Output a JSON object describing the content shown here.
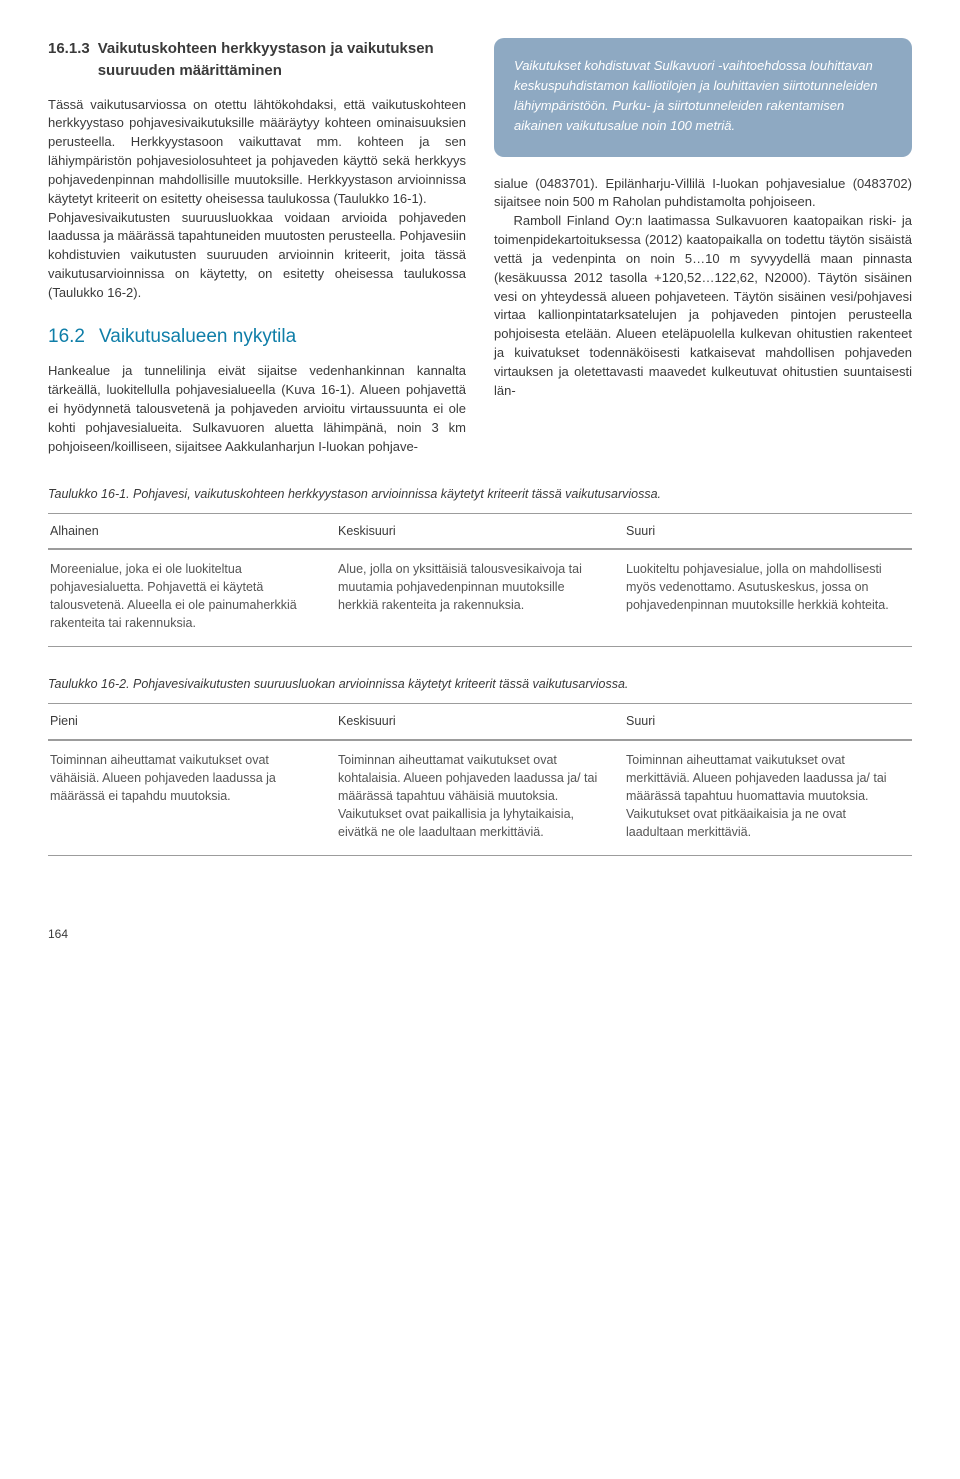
{
  "colors": {
    "body_text": "#3a3a3a",
    "blue_heading": "#0f7ea8",
    "callout_bg": "#8ea9c2",
    "callout_text": "#ffffff",
    "table_border": "#9c9c9c",
    "table_cell_text": "#555555",
    "background": "#ffffff"
  },
  "typography": {
    "body_fontsize_pt": 10,
    "heading_fontsize_pt": 14,
    "callout_fontsize_pt": 10,
    "caption_fontsize_pt": 9.5,
    "font_family": "Arial"
  },
  "section1613": {
    "num": "16.1.3",
    "title": "Vaikutuskohteen herkkyystason ja vaikutuksen suuruuden määrittäminen",
    "para1": "Tässä vaikutusarviossa on otettu lähtökohdaksi, että vaikutuskohteen herkkyystaso pohjavesivaikutuksille määräytyy kohteen ominaisuuksien perusteella. Herkkyystasoon vaikuttavat mm. kohteen ja sen lähiympäristön pohjavesiolosuhteet ja pohjaveden käyttö sekä herkkyys pohjavedenpinnan mahdollisille muutoksille. Herkkyystason arvioinnissa käytetyt kriteerit on esitetty oheisessa taulukossa (Taulukko 16-1).",
    "para2": "Pohjavesivaikutusten suuruusluokkaa voidaan arvioida pohjaveden laadussa ja määrässä tapahtuneiden muutosten perusteella. Pohjavesiin kohdistuvien vaikutusten suuruuden arvioinnin kriteerit, joita tässä vaikutusarvioinnissa on käytetty, on esitetty oheisessa taulukossa (Taulukko 16-2)."
  },
  "section162": {
    "num": "16.2",
    "title": "Vaikutusalueen nykytila",
    "para": "Hankealue ja tunnelilinja eivät sijaitse vedenhankinnan kannalta tärkeällä, luokitellulla pohjavesialueella (Kuva 16-1). Alueen pohjavettä ei hyödynnetä talousvetenä ja pohjaveden arvioitu virtaussuunta ei ole kohti pohjavesialueita. Sulkavuoren aluetta lähimpänä, noin 3 km pohjoiseen/koilliseen, sijaitsee Aakkulanharjun I-luokan pohjave-"
  },
  "callout": "Vaikutukset kohdistuvat Sulkavuori -vaihtoehdossa louhittavan keskuspuhdistamon kalliotilojen ja louhittavien siirtotunneleiden lähiympäristöön. Purku- ja siirtotunneleiden rakentamisen aikainen vaikutusalue noin 100 metriä.",
  "right_col": {
    "para1": "sialue (0483701). Epilänharju-Villilä I-luokan pohjavesialue (0483702) sijaitsee noin 500 m Raholan puhdistamolta pohjoiseen.",
    "para2": "Ramboll Finland Oy:n laatimassa Sulkavuoren kaatopaikan riski- ja toimenpidekartoituksessa (2012) kaatopaikalla on todettu  täytön sisäistä vettä ja vedenpinta on noin 5…10 m syvyydellä maan pinnasta (kesäkuussa 2012 tasolla +120,52…122,62, N2000). Täytön sisäinen vesi on yhteydessä alueen pohjaveteen. Täytön sisäinen vesi/pohjavesi virtaa kallionpintatarksatelujen ja pohjaveden pintojen perusteella pohjoisesta etelään. Alueen eteläpuolella kulkevan ohitustien rakenteet ja kuivatukset todennäköisesti katkaisevat mahdollisen pohjaveden virtauksen ja oletettavasti maavedet kulkeutuvat ohitustien suuntaisesti län-"
  },
  "table1": {
    "caption": "Taulukko 16-1. Pohjavesi, vaikutuskohteen herkkyystason arvioinnissa käytetyt kriteerit tässä vaikutusarviossa.",
    "headers": [
      "Alhainen",
      "Keskisuuri",
      "Suuri"
    ],
    "rows": [
      [
        "Moreenialue, joka ei ole luokiteltua pohjavesialuetta. Pohjavettä ei käytetä talousvetenä. Alueella ei ole painumaherkkiä rakenteita tai rakennuksia.",
        "Alue, jolla on yksittäisiä talousvesikaivoja tai muutamia pohjavedenpinnan muutoksille herkkiä rakenteita ja rakennuksia.",
        "Luokiteltu pohjavesialue, jolla on mahdollisesti myös vedenottamo. Asutuskeskus, jossa on pohjavedenpinnan muutoksille herkkiä kohteita."
      ]
    ],
    "col_widths_pct": [
      33.3,
      33.3,
      33.3
    ]
  },
  "table2": {
    "caption": "Taulukko 16-2. Pohjavesivaikutusten suuruusluokan arvioinnissa käytetyt kriteerit tässä vaikutusarviossa.",
    "headers": [
      "Pieni",
      "Keskisuuri",
      "Suuri"
    ],
    "rows": [
      [
        "Toiminnan aiheuttamat vaikutukset ovat vähäisiä. Alueen pohjaveden laadussa ja määrässä ei tapahdu muutoksia.",
        "Toiminnan aiheuttamat vaikutukset ovat kohtalaisia. Alueen pohjaveden laadussa ja/ tai määrässä tapahtuu vähäisiä muutoksia. Vaikutukset ovat paikallisia ja lyhytaikaisia, eivätkä ne ole laadultaan merkittäviä.",
        "Toiminnan aiheuttamat vaikutukset ovat merkittäviä. Alueen pohjaveden laadussa ja/ tai määrässä tapahtuu huomattavia muutoksia. Vaikutukset ovat pitkäaikaisia ja ne ovat laadultaan merkittäviä."
      ]
    ],
    "col_widths_pct": [
      33.3,
      33.3,
      33.3
    ]
  },
  "page_number": "164"
}
